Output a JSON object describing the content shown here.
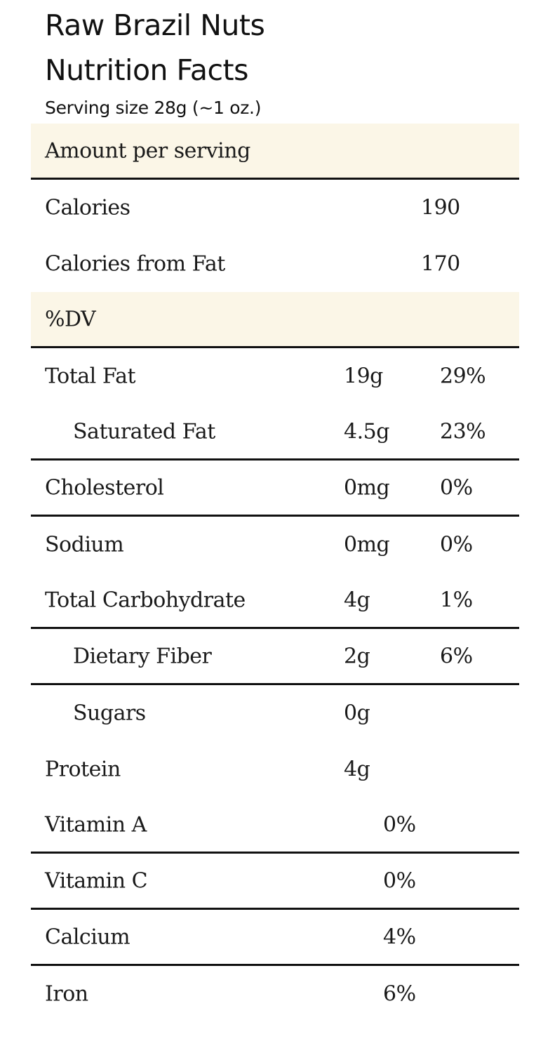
{
  "header": {
    "product_name": "Raw Brazil Nuts",
    "title": "Nutrition Facts",
    "serving_size": "Serving size 28g (~1 oz.)"
  },
  "sections": {
    "amount_per_serving": "Amount per serving",
    "percent_dv": "%DV"
  },
  "calories": [
    {
      "name": "Calories",
      "value": "190"
    },
    {
      "name": "Calories from Fat",
      "value": "170"
    }
  ],
  "nutrients": [
    {
      "name": "Total Fat",
      "amount": "19g",
      "dv": "29%"
    },
    {
      "name": "Saturated Fat",
      "amount": "4.5g",
      "dv": "23%"
    },
    {
      "name": "Cholesterol",
      "amount": "0mg",
      "dv": "0%"
    },
    {
      "name": "Sodium",
      "amount": "0mg",
      "dv": "0%"
    },
    {
      "name": "Total Carbohydrate",
      "amount": "4g",
      "dv": "1%"
    },
    {
      "name": "Dietary Fiber",
      "amount": "2g",
      "dv": "6%"
    },
    {
      "name": "Sugars",
      "amount": "0g",
      "dv": ""
    },
    {
      "name": "Protein",
      "amount": "4g",
      "dv": ""
    }
  ],
  "vitamins": [
    {
      "name": "Vitamin A",
      "dv": "0%"
    },
    {
      "name": "Vitamin C",
      "dv": "0%"
    },
    {
      "name": "Calcium",
      "dv": "4%"
    },
    {
      "name": "Iron",
      "dv": "6%"
    }
  ]
}
